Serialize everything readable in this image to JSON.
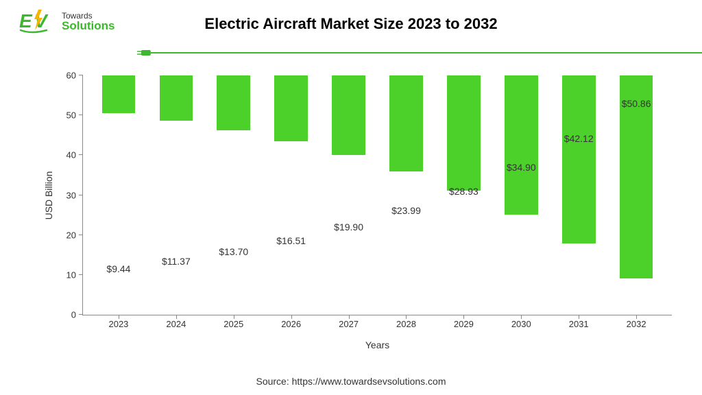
{
  "logo": {
    "line1": "Towards",
    "line2": "Solutions",
    "ev_color": "#3db82e",
    "bolt_color": "#f7b500",
    "text_color_top": "#333333"
  },
  "title": "Electric Aircraft Market Size 2023 to 2032",
  "plug_line_color": "#3db82e",
  "chart": {
    "type": "bar",
    "categories": [
      "2023",
      "2024",
      "2025",
      "2026",
      "2027",
      "2028",
      "2029",
      "2030",
      "2031",
      "2032"
    ],
    "values": [
      9.44,
      11.37,
      13.7,
      16.51,
      19.9,
      23.99,
      28.93,
      34.9,
      42.12,
      50.86
    ],
    "value_labels": [
      "$9.44",
      "$11.37",
      "$13.70",
      "$16.51",
      "$19.90",
      "$23.99",
      "$28.93",
      "$34.90",
      "$42.12",
      "$50.86"
    ],
    "bar_color": "#4bd12a",
    "title_fontsize": 22,
    "ylabel": "USD Billion",
    "xlabel": "Years",
    "label_fontsize": 14,
    "tick_fontsize": 13,
    "value_label_fontsize": 14,
    "ylim": [
      0,
      60
    ],
    "ytick_step": 10,
    "axis_color": "#888888",
    "background_color": "#ffffff",
    "bar_width": 0.58
  },
  "source": "Source: https://www.towardsevsolutions.com"
}
